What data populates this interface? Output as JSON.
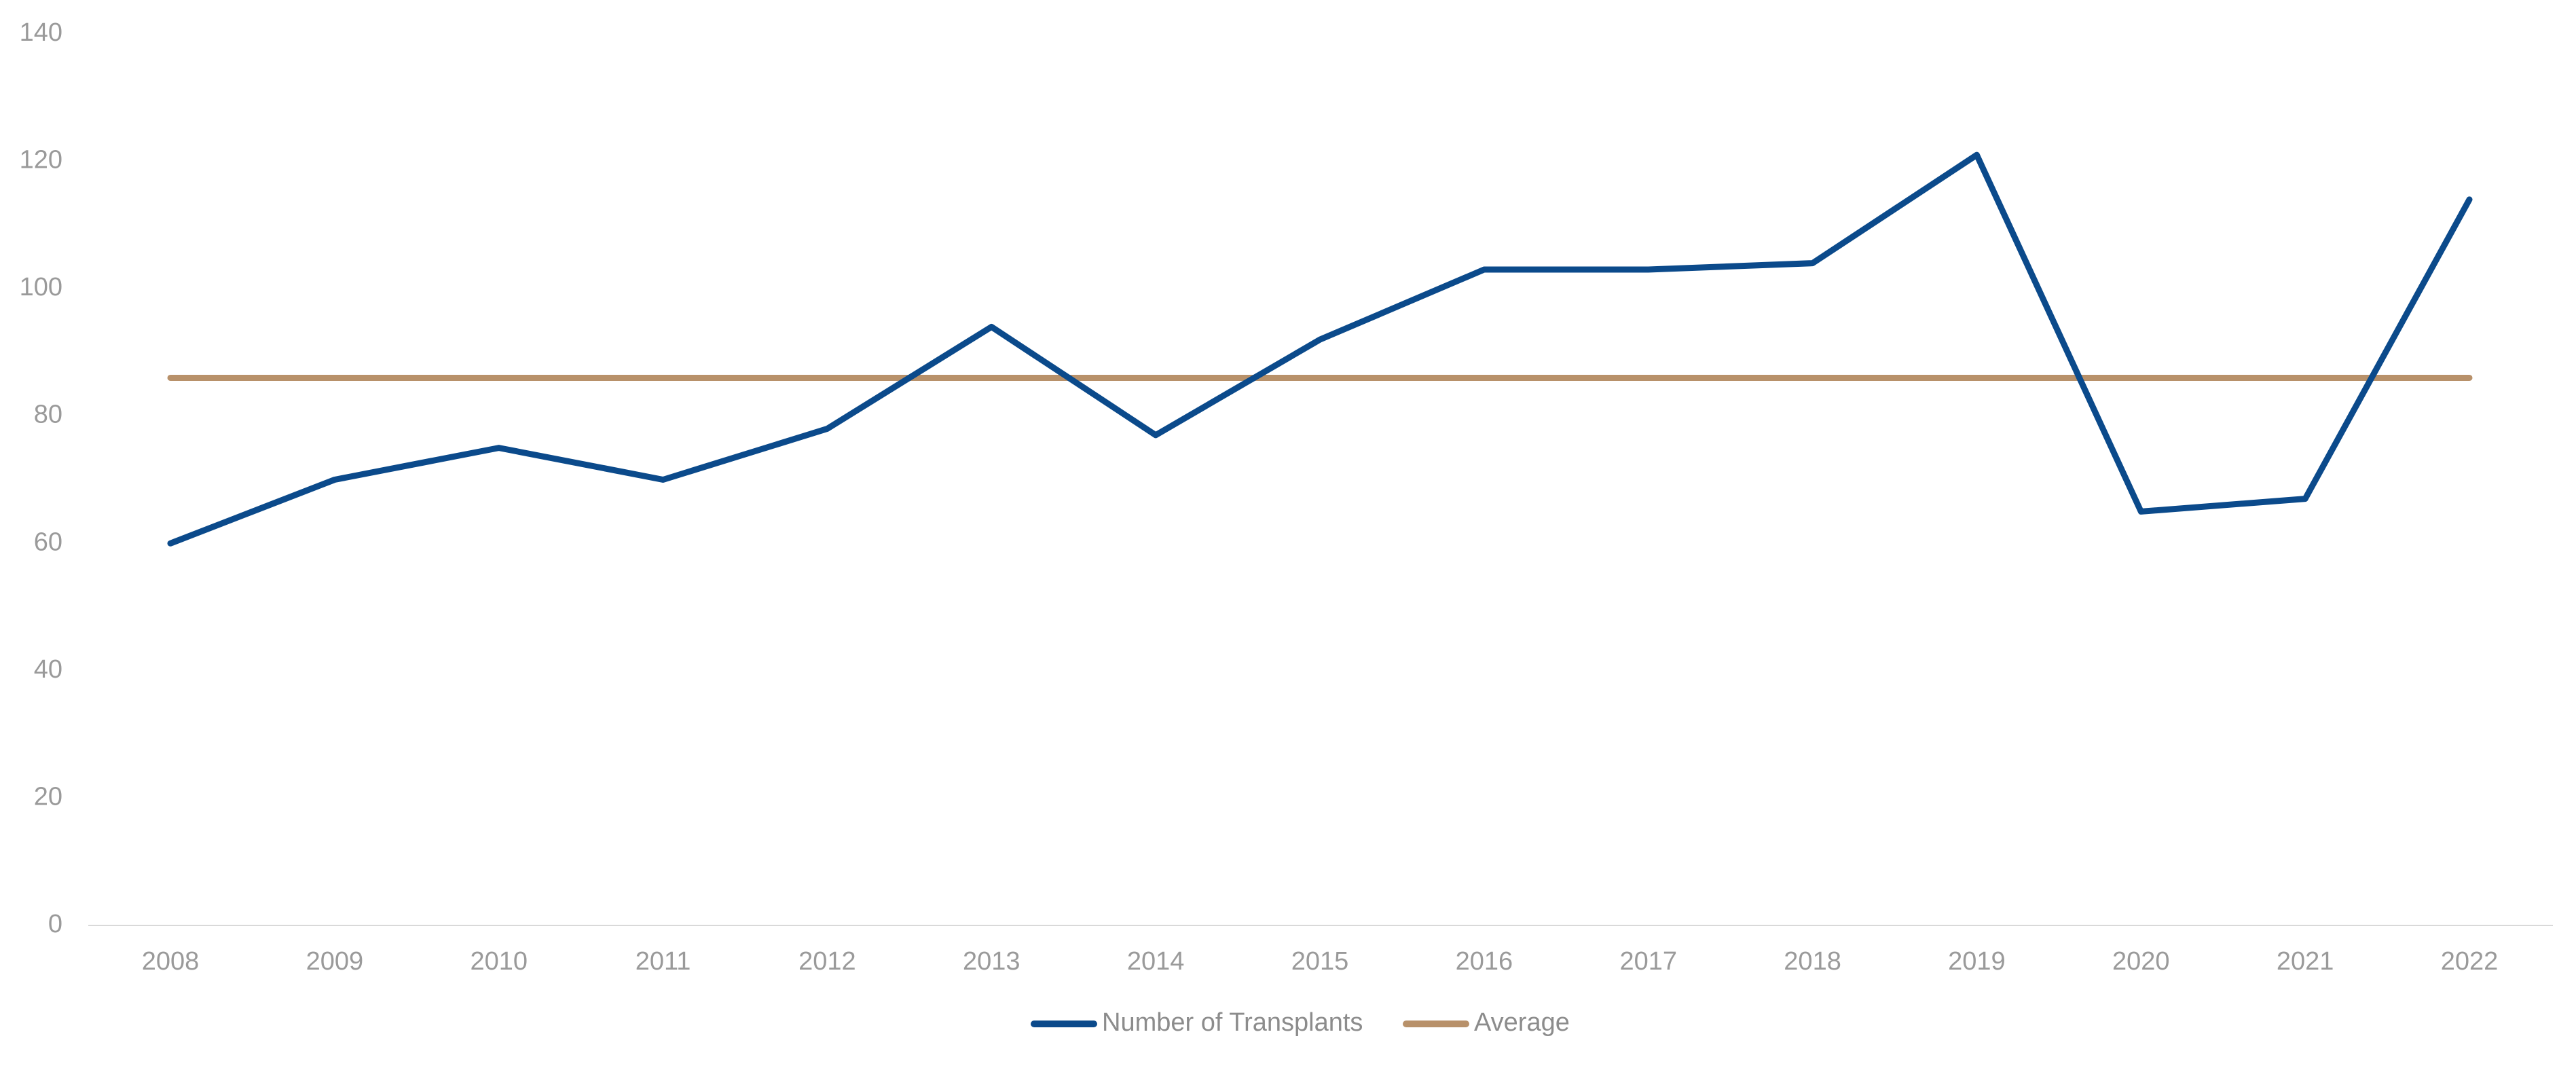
{
  "chart_data": {
    "type": "line",
    "title": "",
    "xlabel": "",
    "ylabel": "",
    "categories": [
      "2008",
      "2009",
      "2010",
      "2011",
      "2012",
      "2013",
      "2014",
      "2015",
      "2016",
      "2017",
      "2018",
      "2019",
      "2020",
      "2021",
      "2022"
    ],
    "ylim": [
      0,
      140
    ],
    "yticks": [
      0,
      20,
      40,
      60,
      80,
      100,
      120,
      140
    ],
    "grid": false,
    "legend_position": "bottom",
    "series": [
      {
        "name": "Number of Transplants",
        "color": "#0b4a8b",
        "values": [
          60,
          70,
          75,
          70,
          78,
          94,
          77,
          92,
          103,
          103,
          104,
          121,
          65,
          67,
          114
        ]
      },
      {
        "name": "Average",
        "color": "#b8916a",
        "values": [
          86,
          86,
          86,
          86,
          86,
          86,
          86,
          86,
          86,
          86,
          86,
          86,
          86,
          86,
          86
        ]
      }
    ]
  }
}
